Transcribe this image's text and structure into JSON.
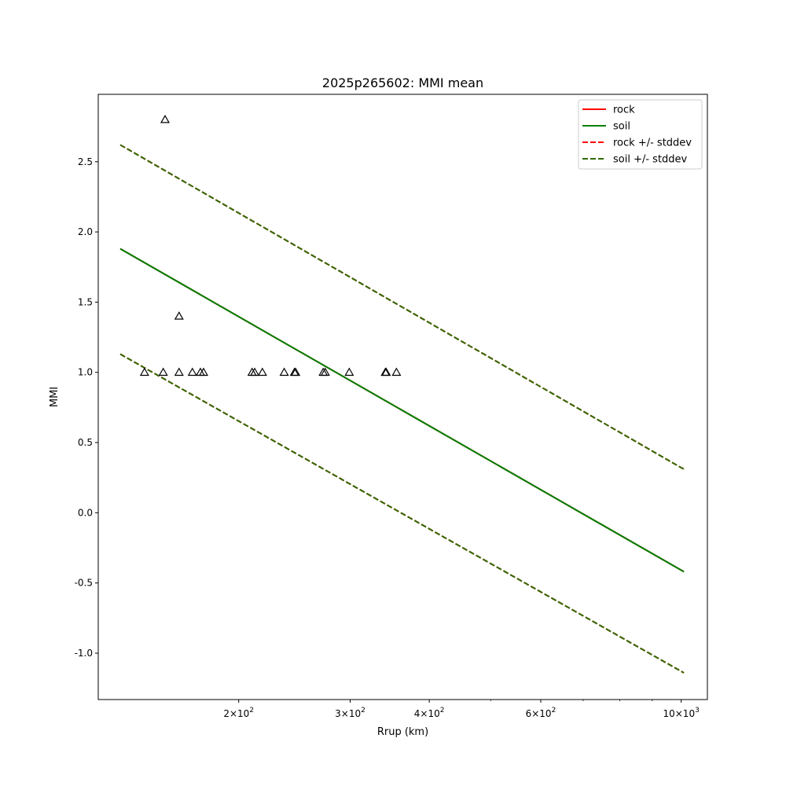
{
  "chart_data": {
    "type": "line",
    "title": "2025p265602: MMI mean",
    "xlabel": "Rrup (km)",
    "ylabel": "MMI",
    "xscale": "log",
    "xlim": [
      120,
      1100
    ],
    "ylim": [
      -1.33,
      2.98
    ],
    "grid": false,
    "legend_position": "top-right",
    "x_ticks": [
      {
        "value": 200,
        "base": "2",
        "exp": "2"
      },
      {
        "value": 300,
        "base": "3",
        "exp": "2"
      },
      {
        "value": 400,
        "base": "4",
        "exp": "2"
      },
      {
        "value": 600,
        "base": "6",
        "exp": "2"
      },
      {
        "value": 1000,
        "base": "10",
        "exp": "3"
      }
    ],
    "y_ticks": [
      "-1.0",
      "-0.5",
      "0.0",
      "0.5",
      "1.0",
      "1.5",
      "2.0",
      "2.5"
    ],
    "series": [
      {
        "name": "rock",
        "color": "#ff0000",
        "style": "solid",
        "x": [
          130,
          1010
        ],
        "y": [
          1.88,
          -0.42
        ]
      },
      {
        "name": "soil",
        "color": "#008000",
        "style": "solid",
        "x": [
          130,
          1010
        ],
        "y": [
          1.88,
          -0.42
        ]
      },
      {
        "name": "rock +/- stddev",
        "color": "#ff0000",
        "style": "dashed",
        "x": [
          130,
          1010
        ],
        "y": [
          2.62,
          0.31
        ],
        "y_lower": [
          1.13,
          -1.14
        ]
      },
      {
        "name": "soil +/- stddev",
        "color": "#2e6b00",
        "style": "dashed",
        "x": [
          130,
          1010
        ],
        "y": [
          2.62,
          0.31
        ],
        "y_lower": [
          1.13,
          -1.14
        ]
      }
    ],
    "observations": {
      "marker": "triangle-open",
      "color": "#000000",
      "points": [
        {
          "x": 142,
          "y": 1.0
        },
        {
          "x": 152,
          "y": 1.0
        },
        {
          "x": 153,
          "y": 2.8
        },
        {
          "x": 161,
          "y": 1.4
        },
        {
          "x": 161,
          "y": 1.0
        },
        {
          "x": 169,
          "y": 1.0
        },
        {
          "x": 174,
          "y": 1.0
        },
        {
          "x": 176,
          "y": 1.0
        },
        {
          "x": 210,
          "y": 1.0
        },
        {
          "x": 212,
          "y": 1.0
        },
        {
          "x": 218,
          "y": 1.0
        },
        {
          "x": 236,
          "y": 1.0
        },
        {
          "x": 245,
          "y": 1.0
        },
        {
          "x": 246,
          "y": 1.0
        },
        {
          "x": 272,
          "y": 1.0
        },
        {
          "x": 274,
          "y": 1.0
        },
        {
          "x": 299,
          "y": 1.0
        },
        {
          "x": 341,
          "y": 1.0
        },
        {
          "x": 342,
          "y": 1.0
        },
        {
          "x": 355,
          "y": 1.0
        }
      ]
    }
  }
}
